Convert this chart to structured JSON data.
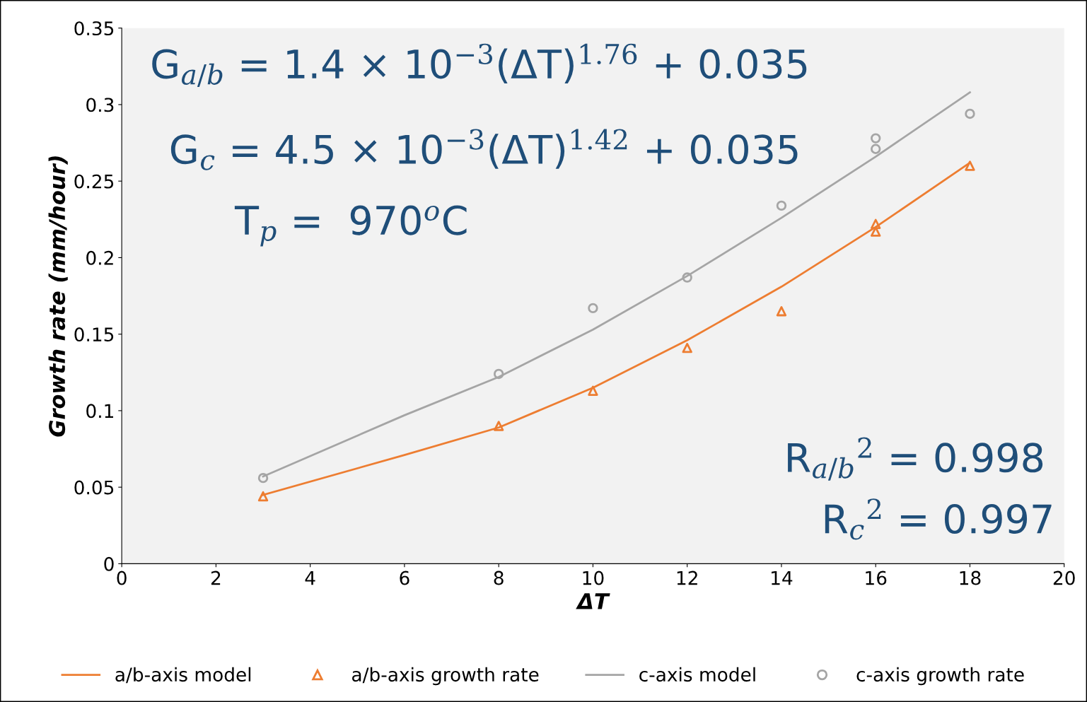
{
  "chart_data": {
    "type": "line",
    "xlabel": "ΔT",
    "ylabel": "Growth rate (mm/hour)",
    "xlim": [
      0,
      20
    ],
    "xticks": [
      0,
      2,
      4,
      6,
      8,
      10,
      12,
      14,
      16,
      18,
      20
    ],
    "ylim": [
      0,
      0.35
    ],
    "yticks": [
      0,
      0.05,
      0.1,
      0.15,
      0.2,
      0.25,
      0.3,
      0.35
    ],
    "grid": false,
    "legend": "bottom",
    "series": [
      {
        "name": "a/b-axis model",
        "color": "#ed7d31",
        "x": [
          3,
          6,
          8,
          10,
          12,
          14,
          16,
          18
        ],
        "values": [
          0.045,
          0.071,
          0.089,
          0.115,
          0.146,
          0.181,
          0.22,
          0.262
        ]
      },
      {
        "name": "a/b-axis growth rate",
        "type": "scatter",
        "marker": "triangle",
        "color": "#ed7d31",
        "x": [
          3,
          8,
          10,
          12,
          14,
          16,
          16,
          18
        ],
        "values": [
          0.044,
          0.09,
          0.113,
          0.141,
          0.165,
          0.222,
          0.217,
          0.26
        ]
      },
      {
        "name": "c-axis model",
        "color": "#a5a5a5",
        "x": [
          3,
          6,
          8,
          10,
          12,
          14,
          16,
          18
        ],
        "values": [
          0.057,
          0.097,
          0.122,
          0.153,
          0.188,
          0.226,
          0.266,
          0.308
        ]
      },
      {
        "name": "c-axis growth rate",
        "type": "scatter",
        "marker": "circle",
        "color": "#a5a5a5",
        "x": [
          3,
          8,
          10,
          12,
          14,
          16,
          16,
          18
        ],
        "values": [
          0.056,
          0.124,
          0.167,
          0.187,
          0.234,
          0.278,
          0.271,
          0.294
        ]
      }
    ],
    "annotations": [
      "G$_{a/b}$ = 1.4 × 10$^{−3}$(ΔT)$^{1.76}$ + 0.035",
      "G$_{c}$ = 4.5 × 10$^{−3}$(ΔT)$^{1.42}$ + 0.035",
      "T$_{p}$ =  970$^{o}$C",
      "R$_{a/b}$$^{2}$ = 0.998",
      "R$_{c}$$^{2}$ = 0.997"
    ]
  }
}
